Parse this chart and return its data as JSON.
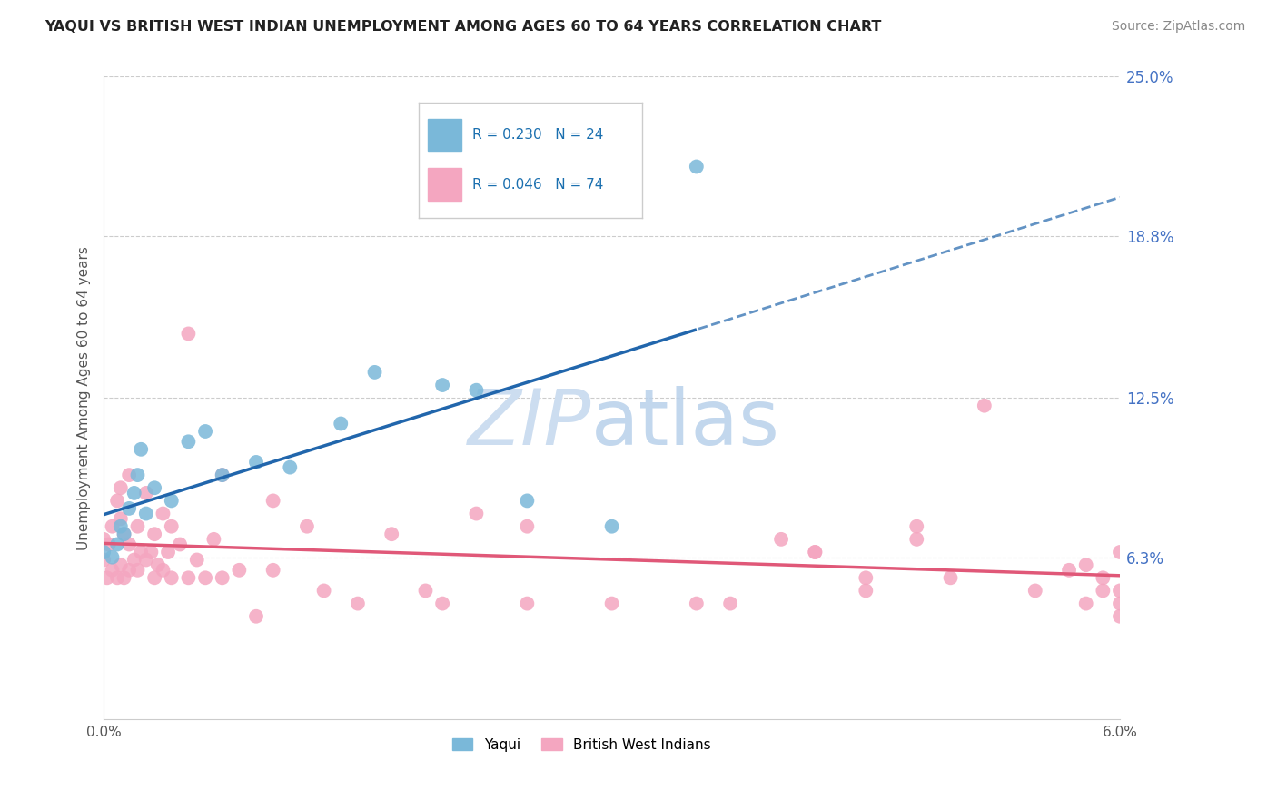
{
  "title": "YAQUI VS BRITISH WEST INDIAN UNEMPLOYMENT AMONG AGES 60 TO 64 YEARS CORRELATION CHART",
  "source": "Source: ZipAtlas.com",
  "ylabel_text": "Unemployment Among Ages 60 to 64 years",
  "xlim": [
    0.0,
    6.0
  ],
  "ylim": [
    0.0,
    25.0
  ],
  "yaqui_color": "#7ab8d9",
  "bwi_color": "#f4a6c0",
  "yaqui_R": 0.23,
  "yaqui_N": 24,
  "bwi_R": 0.046,
  "bwi_N": 74,
  "trend_blue": "#2166ac",
  "trend_pink": "#e05878",
  "yticks": [
    6.3,
    12.5,
    18.8,
    25.0
  ],
  "ytick_labels": [
    "6.3%",
    "12.5%",
    "18.8%",
    "25.0%"
  ],
  "xticks": [
    0.0,
    6.0
  ],
  "xtick_labels": [
    "0.0%",
    "6.0%"
  ],
  "yaqui_x": [
    0.0,
    0.05,
    0.08,
    0.1,
    0.12,
    0.15,
    0.18,
    0.2,
    0.22,
    0.25,
    0.3,
    0.4,
    0.5,
    0.6,
    0.7,
    0.9,
    1.1,
    1.4,
    1.6,
    2.0,
    2.2,
    2.5,
    3.0,
    3.5
  ],
  "yaqui_y": [
    6.5,
    6.3,
    6.8,
    7.5,
    7.2,
    8.2,
    8.8,
    9.5,
    10.5,
    8.0,
    9.0,
    8.5,
    10.8,
    11.2,
    9.5,
    10.0,
    9.8,
    11.5,
    13.5,
    13.0,
    12.8,
    8.5,
    7.5,
    21.5
  ],
  "bwi_x": [
    0.0,
    0.0,
    0.02,
    0.03,
    0.05,
    0.05,
    0.08,
    0.08,
    0.1,
    0.1,
    0.1,
    0.12,
    0.12,
    0.15,
    0.15,
    0.15,
    0.18,
    0.2,
    0.2,
    0.22,
    0.25,
    0.25,
    0.28,
    0.3,
    0.3,
    0.32,
    0.35,
    0.35,
    0.38,
    0.4,
    0.4,
    0.45,
    0.5,
    0.5,
    0.55,
    0.6,
    0.65,
    0.7,
    0.7,
    0.8,
    0.9,
    1.0,
    1.0,
    1.2,
    1.3,
    1.5,
    1.7,
    1.9,
    2.0,
    2.2,
    2.5,
    2.5,
    3.0,
    3.5,
    3.7,
    4.0,
    4.2,
    4.5,
    4.8,
    5.0,
    5.2,
    5.5,
    5.7,
    5.8,
    5.9,
    5.9,
    6.0,
    6.0,
    6.0,
    6.0,
    5.8,
    4.2,
    4.5,
    4.8
  ],
  "bwi_y": [
    6.2,
    7.0,
    5.5,
    6.8,
    5.8,
    7.5,
    5.5,
    8.5,
    6.0,
    7.8,
    9.0,
    5.5,
    7.2,
    5.8,
    6.8,
    9.5,
    6.2,
    5.8,
    7.5,
    6.5,
    6.2,
    8.8,
    6.5,
    5.5,
    7.2,
    6.0,
    5.8,
    8.0,
    6.5,
    5.5,
    7.5,
    6.8,
    5.5,
    15.0,
    6.2,
    5.5,
    7.0,
    5.5,
    9.5,
    5.8,
    4.0,
    5.8,
    8.5,
    7.5,
    5.0,
    4.5,
    7.2,
    5.0,
    4.5,
    8.0,
    4.5,
    7.5,
    4.5,
    4.5,
    4.5,
    7.0,
    6.5,
    5.0,
    7.5,
    5.5,
    12.2,
    5.0,
    5.8,
    4.5,
    5.0,
    5.5,
    6.5,
    5.0,
    4.5,
    4.0,
    6.0,
    6.5,
    5.5,
    7.0
  ]
}
